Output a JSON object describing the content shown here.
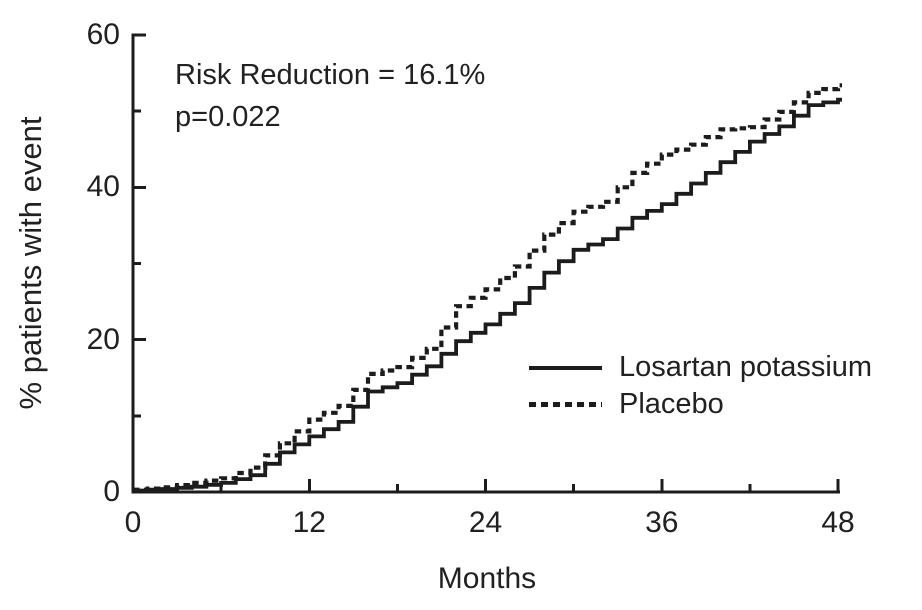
{
  "annotation": {
    "line1": "Risk Reduction = 16.1%",
    "line2": "p=0.022"
  },
  "axes": {
    "x": {
      "label": "Months",
      "range": [
        0,
        48
      ],
      "major_ticks": [
        0,
        12,
        24,
        36,
        48
      ],
      "minor_ticks": [
        6,
        18,
        30,
        42
      ],
      "tick_labels": [
        "0",
        "12",
        "24",
        "36",
        "48"
      ]
    },
    "y": {
      "label": "% patients with event",
      "range": [
        0,
        60
      ],
      "major_ticks": [
        0,
        20,
        40,
        60
      ],
      "minor_ticks": [
        10,
        30,
        50
      ],
      "tick_labels": [
        "0",
        "20",
        "40",
        "60"
      ]
    }
  },
  "legend": {
    "items": [
      {
        "label": "Losartan potassium",
        "style": "solid"
      },
      {
        "label": "Placebo",
        "style": "dashed"
      }
    ]
  },
  "colors": {
    "ink": "#1c1c1c",
    "text": "#212121",
    "background": "#ffffff"
  },
  "chart_data": {
    "type": "line",
    "subtype": "kaplan-meier-step",
    "title": "",
    "xlabel": "Months",
    "ylabel": "% patients with event",
    "xlim": [
      0,
      48
    ],
    "ylim": [
      0,
      60
    ],
    "grid": false,
    "legend_position": "lower-right",
    "annotations": [
      "Risk Reduction = 16.1%",
      "p=0.022"
    ],
    "x": [
      0,
      2,
      4,
      6,
      8,
      10,
      12,
      14,
      16,
      18,
      20,
      22,
      24,
      26,
      28,
      30,
      32,
      34,
      36,
      38,
      40,
      42,
      44,
      46,
      48
    ],
    "series": [
      {
        "name": "Losartan potassium",
        "id": "losartan-curve",
        "line_style": "solid",
        "color": "#1c1c1c",
        "values": [
          0.2,
          0.4,
          0.7,
          1.2,
          2.2,
          5.2,
          7.3,
          9.2,
          13.2,
          14.3,
          16.5,
          19.8,
          22.0,
          24.8,
          28.8,
          31.8,
          33.2,
          36.0,
          37.8,
          40.5,
          43.3,
          46.0,
          48.0,
          50.8,
          51.5
        ]
      },
      {
        "name": "Placebo",
        "id": "placebo-curve",
        "line_style": "dashed",
        "color": "#1c1c1c",
        "values": [
          0.3,
          0.6,
          1.2,
          1.8,
          3.2,
          6.4,
          9.5,
          11.3,
          15.5,
          16.4,
          18.8,
          24.4,
          26.6,
          29.6,
          33.8,
          36.8,
          38.1,
          41.9,
          44.3,
          45.6,
          47.6,
          47.9,
          49.9,
          52.4,
          53.4
        ]
      }
    ]
  }
}
